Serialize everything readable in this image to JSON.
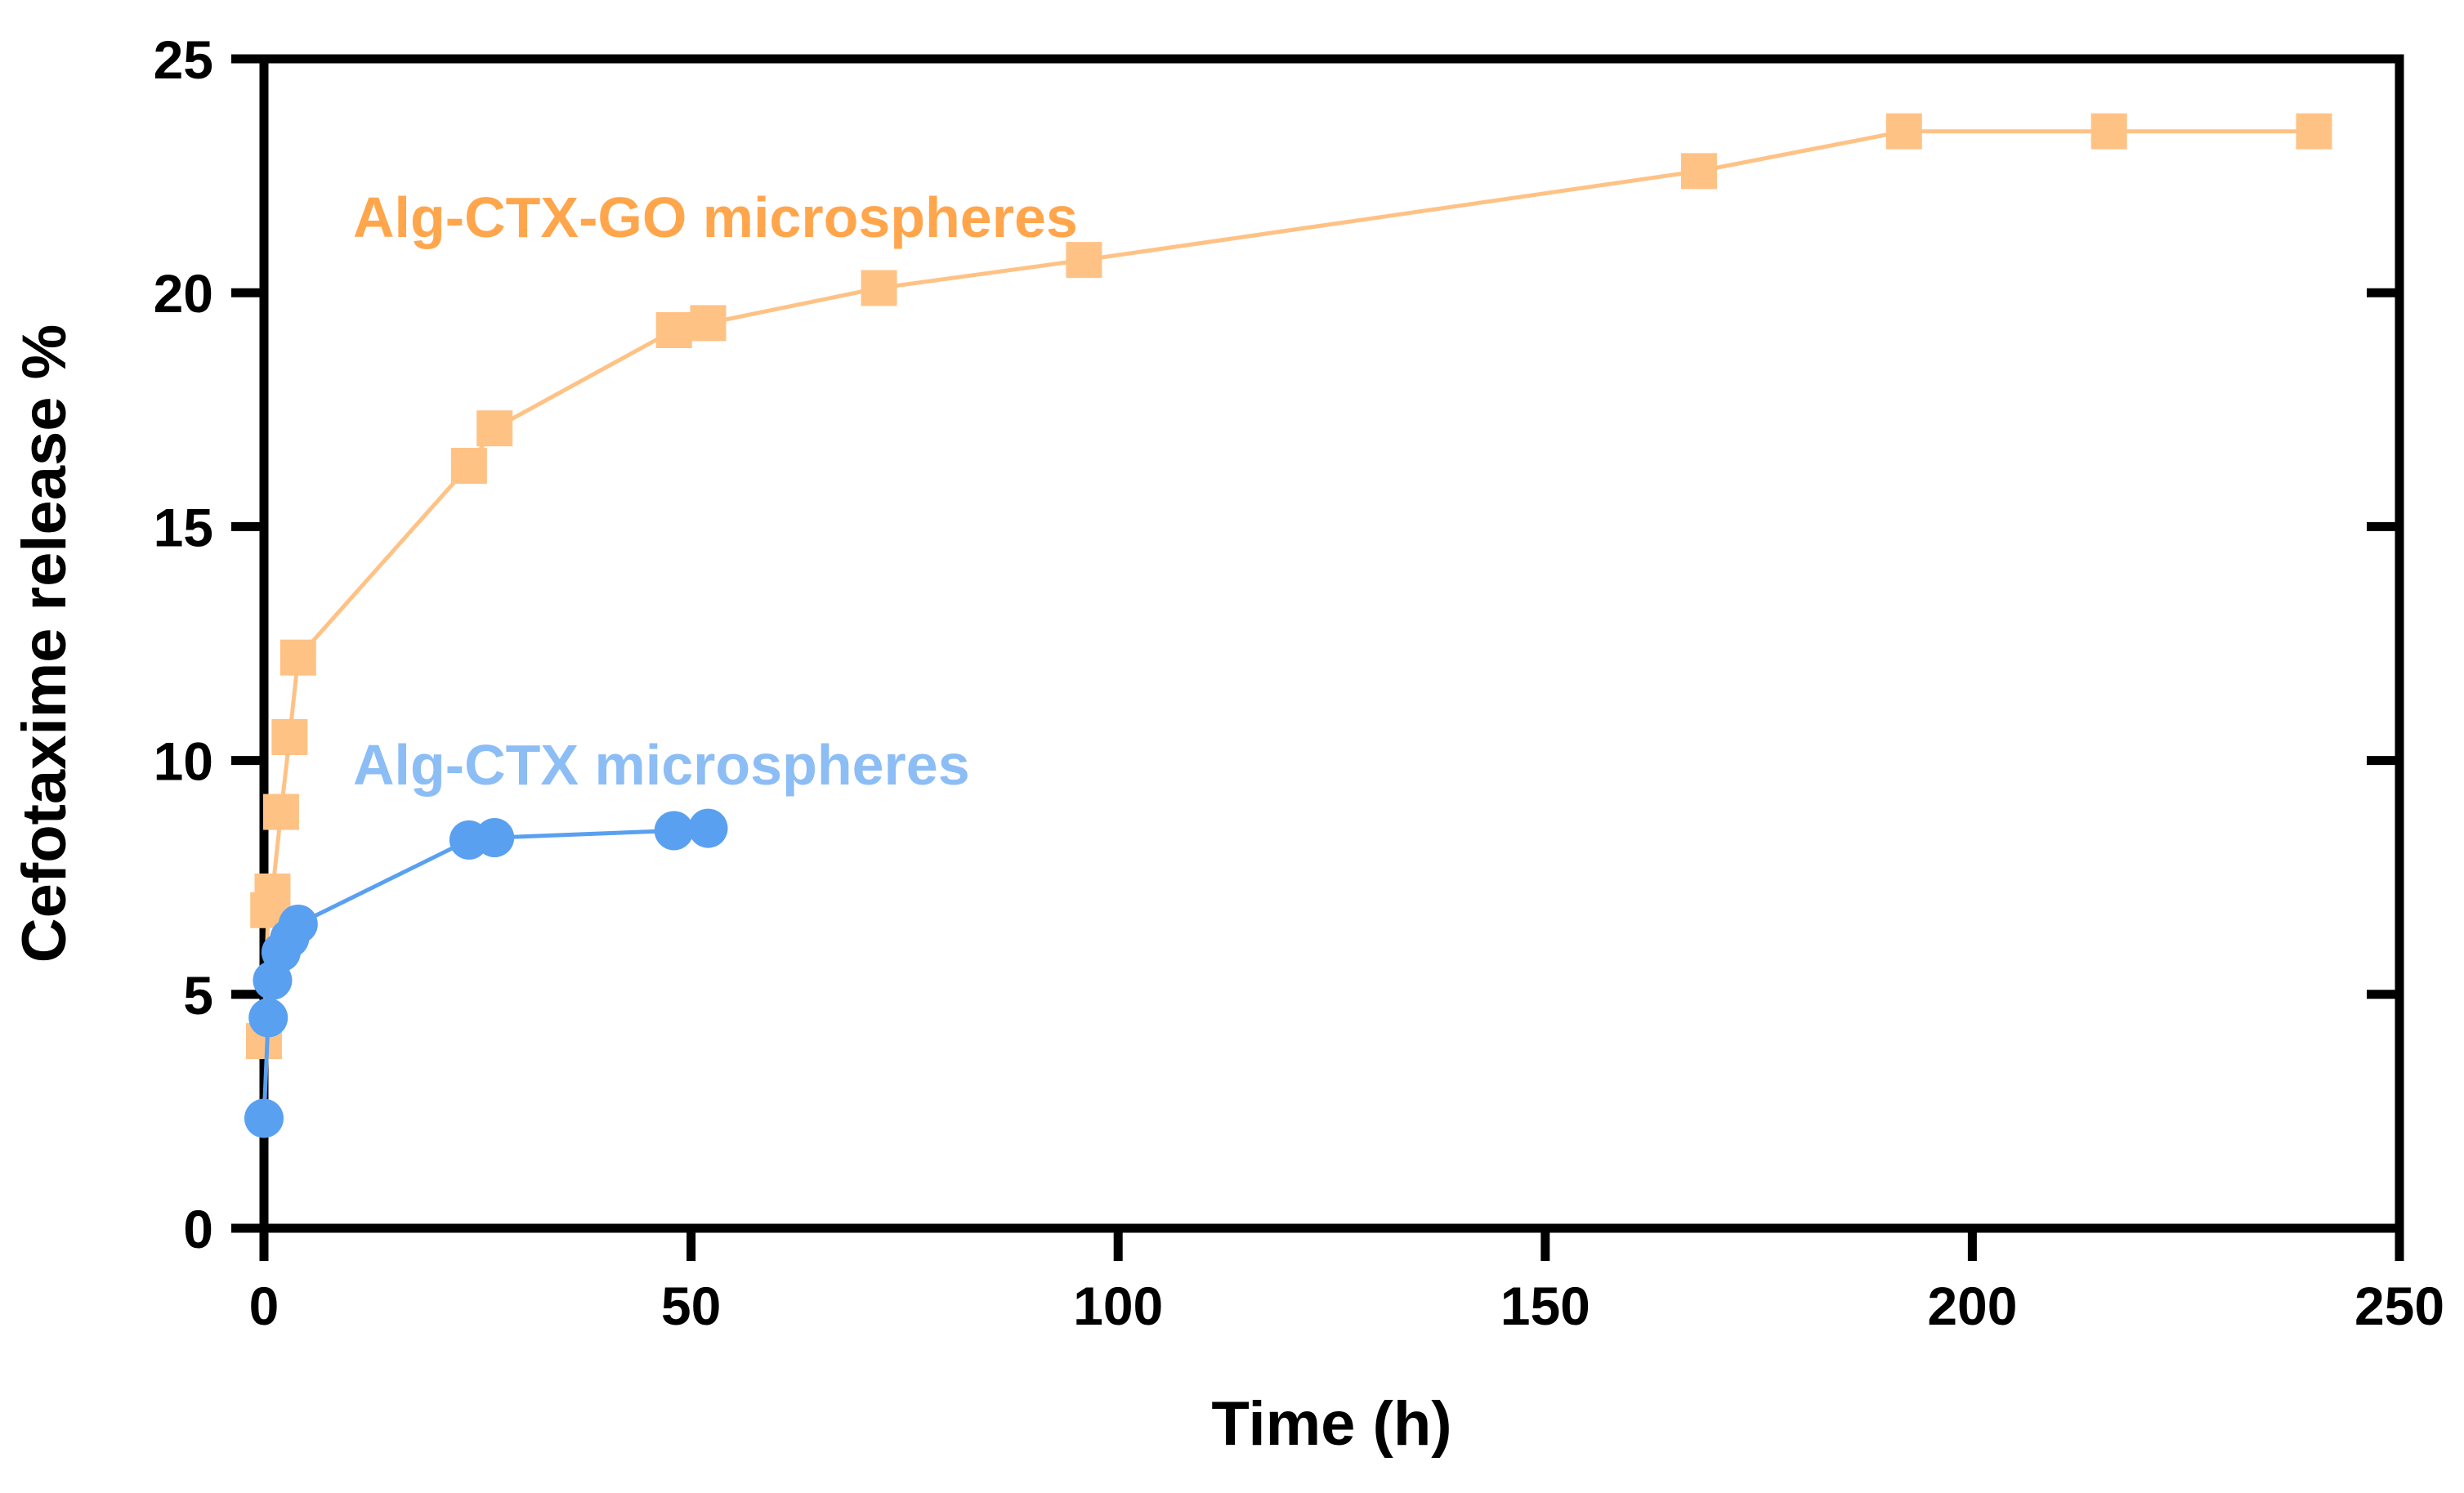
{
  "chart_data": {
    "type": "line",
    "title": "",
    "xlabel": "Time (h)",
    "ylabel": "Cefotaxime release %",
    "xlim": [
      0,
      250
    ],
    "ylim": [
      0,
      25
    ],
    "x_ticks": [
      0,
      50,
      100,
      150,
      200,
      250
    ],
    "y_ticks": [
      0,
      5,
      10,
      15,
      20,
      25
    ],
    "x_tick_labels": [
      "0",
      "50",
      "100",
      "150",
      "200",
      "250"
    ],
    "y_tick_labels": [
      "0",
      "5",
      "10",
      "15",
      "20",
      "25"
    ],
    "grid": false,
    "series": [
      {
        "name": "Alg-CTX-GO microspheres",
        "label": "Alg-CTX-GO microspheres",
        "marker": "square",
        "line_color": "#FFC285",
        "marker_color": "#FFC285",
        "label_color": "#FFA64D",
        "x": [
          0,
          0.5,
          1,
          2,
          3,
          4,
          24,
          27,
          48,
          52,
          72,
          96,
          168,
          192,
          216,
          240
        ],
        "y": [
          4.0,
          6.8,
          7.2,
          8.9,
          10.5,
          12.2,
          16.3,
          17.1,
          19.2,
          19.35,
          20.1,
          20.7,
          22.6,
          23.45,
          23.45,
          23.45
        ]
      },
      {
        "name": "Alg-CTX microspheres",
        "label": "Alg-CTX microspheres",
        "marker": "circle",
        "line_color": "#5AA0F0",
        "marker_color": "#5AA0F0",
        "label_color": "#8CBDF5",
        "x": [
          0,
          0.5,
          1,
          2,
          3,
          4,
          24,
          27,
          48,
          52
        ],
        "y": [
          2.35,
          4.5,
          5.3,
          5.9,
          6.2,
          6.5,
          8.3,
          8.35,
          8.5,
          8.55
        ]
      }
    ]
  }
}
